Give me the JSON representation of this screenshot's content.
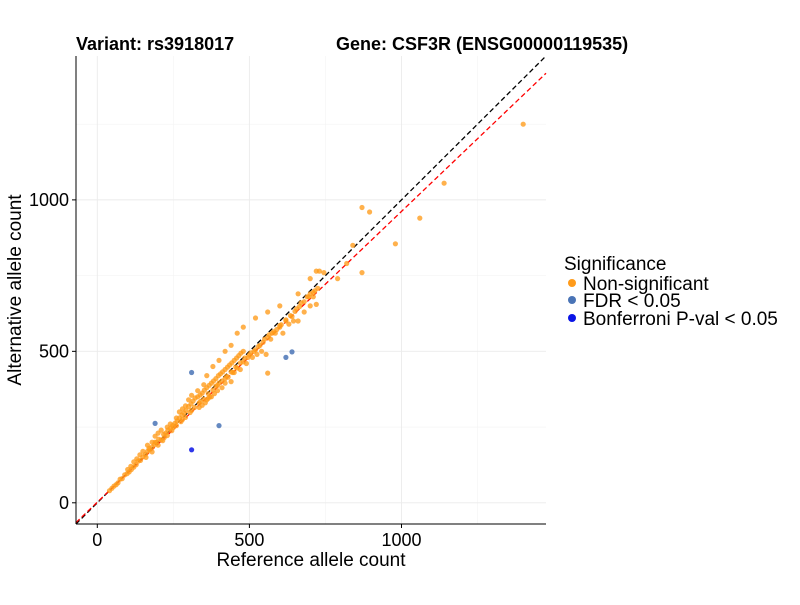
{
  "chart_data": {
    "type": "scatter",
    "title_left": "Variant: rs3918017",
    "title_right": "Gene: CSF3R (ENSG00000119535)",
    "xlabel": "Reference allele count",
    "ylabel": "Alternative allele count",
    "xlim": [
      -70,
      1475
    ],
    "ylim": [
      -70,
      1475
    ],
    "x_ticks": [
      0,
      500,
      1000
    ],
    "y_ticks": [
      0,
      500,
      1000
    ],
    "x_tick_labels": [
      "0",
      "500",
      "1000"
    ],
    "y_tick_labels": [
      "0",
      "500",
      "1000"
    ],
    "grid": true,
    "reference_lines": [
      {
        "name": "identity",
        "slope": 1.0,
        "intercept": 0,
        "color": "#000000",
        "dash": "dashed"
      },
      {
        "name": "fit",
        "slope": 0.96,
        "intercept": 2,
        "color": "#ff0000",
        "dash": "dashed"
      }
    ],
    "legend": {
      "title": "Significance",
      "position": "right",
      "entries": [
        {
          "label": "Non-significant",
          "color": "#ff9b1a"
        },
        {
          "label": "FDR < 0.05",
          "color": "#4a74b6"
        },
        {
          "label": "Bonferroni P-val < 0.05",
          "color": "#0a14e6"
        }
      ]
    },
    "series": [
      {
        "name": "Non-significant",
        "color": "#ff9b1a",
        "points": [
          [
            40,
            40
          ],
          [
            48,
            48
          ],
          [
            55,
            55
          ],
          [
            62,
            60
          ],
          [
            68,
            66
          ],
          [
            75,
            78
          ],
          [
            82,
            80
          ],
          [
            90,
            92
          ],
          [
            98,
            96
          ],
          [
            105,
            102
          ],
          [
            112,
            110
          ],
          [
            120,
            118
          ],
          [
            128,
            126
          ],
          [
            135,
            138
          ],
          [
            142,
            140
          ],
          [
            150,
            152
          ],
          [
            158,
            160
          ],
          [
            165,
            170
          ],
          [
            172,
            175
          ],
          [
            180,
            184
          ],
          [
            188,
            192
          ],
          [
            195,
            200
          ],
          [
            202,
            210
          ],
          [
            210,
            208
          ],
          [
            218,
            226
          ],
          [
            225,
            230
          ],
          [
            232,
            240
          ],
          [
            240,
            246
          ],
          [
            248,
            255
          ],
          [
            255,
            262
          ],
          [
            262,
            270
          ],
          [
            270,
            280
          ],
          [
            278,
            290
          ],
          [
            285,
            296
          ],
          [
            292,
            305
          ],
          [
            300,
            318
          ],
          [
            308,
            326
          ],
          [
            315,
            336
          ],
          [
            322,
            346
          ],
          [
            330,
            350
          ],
          [
            338,
            356
          ],
          [
            345,
            362
          ],
          [
            352,
            372
          ],
          [
            360,
            380
          ],
          [
            368,
            388
          ],
          [
            375,
            395
          ],
          [
            382,
            402
          ],
          [
            390,
            410
          ],
          [
            398,
            420
          ],
          [
            405,
            426
          ],
          [
            412,
            432
          ],
          [
            420,
            440
          ],
          [
            428,
            448
          ],
          [
            435,
            455
          ],
          [
            442,
            462
          ],
          [
            450,
            470
          ],
          [
            458,
            478
          ],
          [
            465,
            486
          ],
          [
            472,
            494
          ],
          [
            480,
            500
          ],
          [
            200,
            190
          ],
          [
            215,
            205
          ],
          [
            230,
            222
          ],
          [
            245,
            238
          ],
          [
            260,
            255
          ],
          [
            275,
            268
          ],
          [
            290,
            282
          ],
          [
            305,
            298
          ],
          [
            320,
            315
          ],
          [
            335,
            330
          ],
          [
            350,
            342
          ],
          [
            365,
            360
          ],
          [
            380,
            372
          ],
          [
            395,
            388
          ],
          [
            410,
            402
          ],
          [
            425,
            418
          ],
          [
            440,
            432
          ],
          [
            455,
            448
          ],
          [
            470,
            462
          ],
          [
            485,
            478
          ],
          [
            500,
            488
          ],
          [
            515,
            500
          ],
          [
            530,
            516
          ],
          [
            545,
            530
          ],
          [
            560,
            546
          ],
          [
            575,
            560
          ],
          [
            590,
            572
          ],
          [
            605,
            588
          ],
          [
            620,
            604
          ],
          [
            635,
            618
          ],
          [
            650,
            632
          ],
          [
            665,
            648
          ],
          [
            680,
            664
          ],
          [
            695,
            680
          ],
          [
            710,
            694
          ],
          [
            725,
            708
          ],
          [
            160,
            150
          ],
          [
            170,
            180
          ],
          [
            180,
            168
          ],
          [
            190,
            200
          ],
          [
            220,
            215
          ],
          [
            250,
            248
          ],
          [
            280,
            275
          ],
          [
            310,
            305
          ],
          [
            340,
            335
          ],
          [
            360,
            340
          ],
          [
            370,
            350
          ],
          [
            390,
            385
          ],
          [
            400,
            395
          ],
          [
            420,
            410
          ],
          [
            430,
            415
          ],
          [
            445,
            430
          ],
          [
            460,
            445
          ],
          [
            480,
            465
          ],
          [
            495,
            480
          ],
          [
            505,
            495
          ],
          [
            520,
            505
          ],
          [
            535,
            520
          ],
          [
            550,
            540
          ],
          [
            565,
            555
          ],
          [
            580,
            565
          ],
          [
            600,
            585
          ],
          [
            610,
            560
          ],
          [
            620,
            600
          ],
          [
            640,
            615
          ],
          [
            655,
            640
          ],
          [
            670,
            660
          ],
          [
            690,
            680
          ],
          [
            700,
            690
          ],
          [
            715,
            700
          ],
          [
            720,
            765
          ],
          [
            730,
            765
          ],
          [
            745,
            760
          ],
          [
            700,
            740
          ],
          [
            660,
            690
          ],
          [
            600,
            650
          ],
          [
            560,
            630
          ],
          [
            520,
            610
          ],
          [
            480,
            580
          ],
          [
            460,
            560
          ],
          [
            440,
            520
          ],
          [
            420,
            500
          ],
          [
            400,
            470
          ],
          [
            380,
            450
          ],
          [
            360,
            420
          ],
          [
            350,
            390
          ],
          [
            330,
            370
          ],
          [
            310,
            355
          ],
          [
            300,
            340
          ],
          [
            290,
            320
          ],
          [
            280,
            310
          ],
          [
            270,
            300
          ],
          [
            260,
            280
          ],
          [
            240,
            260
          ],
          [
            230,
            250
          ],
          [
            210,
            240
          ],
          [
            200,
            230
          ],
          [
            190,
            220
          ],
          [
            180,
            200
          ],
          [
            165,
            190
          ],
          [
            150,
            170
          ],
          [
            140,
            158
          ],
          [
            130,
            145
          ],
          [
            120,
            135
          ],
          [
            110,
            120
          ],
          [
            100,
            110
          ],
          [
            450,
            430
          ],
          [
            470,
            440
          ],
          [
            490,
            460
          ],
          [
            510,
            480
          ],
          [
            525,
            490
          ],
          [
            540,
            500
          ],
          [
            555,
            490
          ],
          [
            570,
            540
          ],
          [
            585,
            560
          ],
          [
            600,
            580
          ],
          [
            630,
            590
          ],
          [
            645,
            600
          ],
          [
            660,
            600
          ],
          [
            680,
            630
          ],
          [
            700,
            650
          ],
          [
            710,
            680
          ],
          [
            720,
            655
          ],
          [
            790,
            740
          ],
          [
            820,
            790
          ],
          [
            840,
            850
          ],
          [
            870,
            975
          ],
          [
            895,
            960
          ],
          [
            870,
            760
          ],
          [
            980,
            855
          ],
          [
            1060,
            940
          ],
          [
            1140,
            1055
          ],
          [
            1400,
            1250
          ],
          [
            560,
            428
          ],
          [
            440,
            400
          ],
          [
            420,
            395
          ],
          [
            410,
            380
          ],
          [
            395,
            370
          ],
          [
            385,
            360
          ],
          [
            375,
            350
          ],
          [
            365,
            345
          ],
          [
            355,
            330
          ],
          [
            345,
            322
          ],
          [
            335,
            315
          ]
        ]
      },
      {
        "name": "FDR < 0.05",
        "color": "#4a74b6",
        "points": [
          [
            310,
            430
          ],
          [
            190,
            262
          ],
          [
            400,
            255
          ],
          [
            620,
            480
          ],
          [
            640,
            498
          ]
        ]
      },
      {
        "name": "Bonferroni P-val < 0.05",
        "color": "#0a14e6",
        "points": [
          [
            310,
            175
          ]
        ]
      }
    ]
  }
}
